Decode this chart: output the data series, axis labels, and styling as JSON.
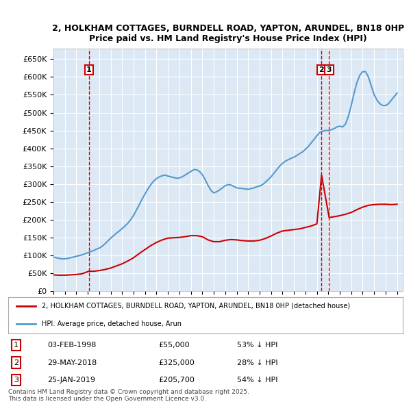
{
  "title1": "2, HOLKHAM COTTAGES, BURNDELL ROAD, YAPTON, ARUNDEL, BN18 0HP",
  "title2": "Price paid vs. HM Land Registry's House Price Index (HPI)",
  "ylabel": "",
  "xlim_start": 1995.0,
  "xlim_end": 2025.5,
  "ylim_min": 0,
  "ylim_max": 680000,
  "yticks": [
    0,
    50000,
    100000,
    150000,
    200000,
    250000,
    300000,
    350000,
    400000,
    450000,
    500000,
    550000,
    600000,
    650000
  ],
  "ytick_labels": [
    "£0",
    "£50K",
    "£100K",
    "£150K",
    "£200K",
    "£250K",
    "£300K",
    "£350K",
    "£400K",
    "£450K",
    "£500K",
    "£550K",
    "£600K",
    "£650K"
  ],
  "bg_color": "#dce9f5",
  "plot_bg": "#dce9f5",
  "red_line_color": "#cc0000",
  "blue_line_color": "#5599cc",
  "transactions": [
    {
      "num": 1,
      "date": "03-FEB-1998",
      "price": 55000,
      "pct": "53%",
      "year": 1998.09
    },
    {
      "num": 2,
      "date": "29-MAY-2018",
      "price": 325000,
      "pct": "28%",
      "year": 2018.41
    },
    {
      "num": 3,
      "date": "25-JAN-2019",
      "price": 205700,
      "pct": "54%",
      "year": 2019.07
    }
  ],
  "legend_line1": "2, HOLKHAM COTTAGES, BURNDELL ROAD, YAPTON, ARUNDEL, BN18 0HP (detached house)",
  "legend_line2": "HPI: Average price, detached house, Arun",
  "footnote1": "Contains HM Land Registry data © Crown copyright and database right 2025.",
  "footnote2": "This data is licensed under the Open Government Licence v3.0.",
  "hpi_years": [
    1995.0,
    1995.25,
    1995.5,
    1995.75,
    1996.0,
    1996.25,
    1996.5,
    1996.75,
    1997.0,
    1997.25,
    1997.5,
    1997.75,
    1998.0,
    1998.25,
    1998.5,
    1998.75,
    1999.0,
    1999.25,
    1999.5,
    1999.75,
    2000.0,
    2000.25,
    2000.5,
    2000.75,
    2001.0,
    2001.25,
    2001.5,
    2001.75,
    2002.0,
    2002.25,
    2002.5,
    2002.75,
    2003.0,
    2003.25,
    2003.5,
    2003.75,
    2004.0,
    2004.25,
    2004.5,
    2004.75,
    2005.0,
    2005.25,
    2005.5,
    2005.75,
    2006.0,
    2006.25,
    2006.5,
    2006.75,
    2007.0,
    2007.25,
    2007.5,
    2007.75,
    2008.0,
    2008.25,
    2008.5,
    2008.75,
    2009.0,
    2009.25,
    2009.5,
    2009.75,
    2010.0,
    2010.25,
    2010.5,
    2010.75,
    2011.0,
    2011.25,
    2011.5,
    2011.75,
    2012.0,
    2012.25,
    2012.5,
    2012.75,
    2013.0,
    2013.25,
    2013.5,
    2013.75,
    2014.0,
    2014.25,
    2014.5,
    2014.75,
    2015.0,
    2015.25,
    2015.5,
    2015.75,
    2016.0,
    2016.25,
    2016.5,
    2016.75,
    2017.0,
    2017.25,
    2017.5,
    2017.75,
    2018.0,
    2018.25,
    2018.5,
    2018.75,
    2019.0,
    2019.25,
    2019.5,
    2019.75,
    2020.0,
    2020.25,
    2020.5,
    2020.75,
    2021.0,
    2021.25,
    2021.5,
    2021.75,
    2022.0,
    2022.25,
    2022.5,
    2022.75,
    2023.0,
    2023.25,
    2023.5,
    2023.75,
    2024.0,
    2024.25,
    2024.5,
    2024.75,
    2025.0
  ],
  "hpi_values": [
    95000,
    93000,
    91000,
    90000,
    90000,
    91000,
    93000,
    95000,
    97000,
    99000,
    101000,
    104000,
    107000,
    110000,
    113000,
    117000,
    120000,
    125000,
    132000,
    140000,
    148000,
    155000,
    162000,
    168000,
    175000,
    182000,
    190000,
    200000,
    212000,
    227000,
    242000,
    258000,
    272000,
    286000,
    298000,
    308000,
    315000,
    320000,
    323000,
    325000,
    322000,
    320000,
    318000,
    316000,
    317000,
    320000,
    325000,
    330000,
    335000,
    340000,
    340000,
    335000,
    326000,
    312000,
    296000,
    282000,
    275000,
    278000,
    283000,
    289000,
    295000,
    298000,
    297000,
    293000,
    289000,
    288000,
    287000,
    286000,
    285000,
    287000,
    289000,
    292000,
    294000,
    298000,
    305000,
    312000,
    320000,
    330000,
    340000,
    350000,
    358000,
    364000,
    368000,
    372000,
    375000,
    380000,
    385000,
    390000,
    397000,
    405000,
    415000,
    425000,
    435000,
    445000,
    448000,
    450000,
    450000,
    452000,
    455000,
    460000,
    462000,
    460000,
    468000,
    490000,
    520000,
    555000,
    585000,
    605000,
    615000,
    615000,
    600000,
    575000,
    550000,
    535000,
    525000,
    520000,
    520000,
    525000,
    535000,
    545000,
    555000
  ],
  "red_years": [
    1995.0,
    1995.5,
    1996.0,
    1996.5,
    1997.0,
    1997.5,
    1998.09,
    1998.5,
    1999.0,
    1999.5,
    2000.0,
    2000.5,
    2001.0,
    2001.5,
    2002.0,
    2002.5,
    2003.0,
    2003.5,
    2004.0,
    2004.5,
    2005.0,
    2005.5,
    2006.0,
    2006.5,
    2007.0,
    2007.5,
    2008.0,
    2008.5,
    2009.0,
    2009.5,
    2010.0,
    2010.5,
    2011.0,
    2011.5,
    2012.0,
    2012.5,
    2013.0,
    2013.5,
    2014.0,
    2014.5,
    2015.0,
    2015.5,
    2016.0,
    2016.5,
    2017.0,
    2017.5,
    2018.0,
    2018.41,
    2019.07,
    2019.5,
    2020.0,
    2020.5,
    2021.0,
    2021.5,
    2022.0,
    2022.5,
    2023.0,
    2023.5,
    2024.0,
    2024.5,
    2025.0
  ],
  "red_values": [
    45000,
    44000,
    44000,
    45000,
    46000,
    48000,
    55000,
    55000,
    57000,
    60000,
    64000,
    70000,
    76000,
    84000,
    93000,
    105000,
    116000,
    127000,
    136000,
    143000,
    148000,
    149000,
    150000,
    152000,
    155000,
    155000,
    152000,
    143000,
    138000,
    138000,
    142000,
    144000,
    143000,
    141000,
    140000,
    140000,
    142000,
    147000,
    154000,
    162000,
    168000,
    170000,
    172000,
    174000,
    178000,
    182000,
    188000,
    325000,
    205700,
    208000,
    211000,
    215000,
    220000,
    228000,
    235000,
    240000,
    242000,
    243000,
    243000,
    242000,
    243000
  ]
}
